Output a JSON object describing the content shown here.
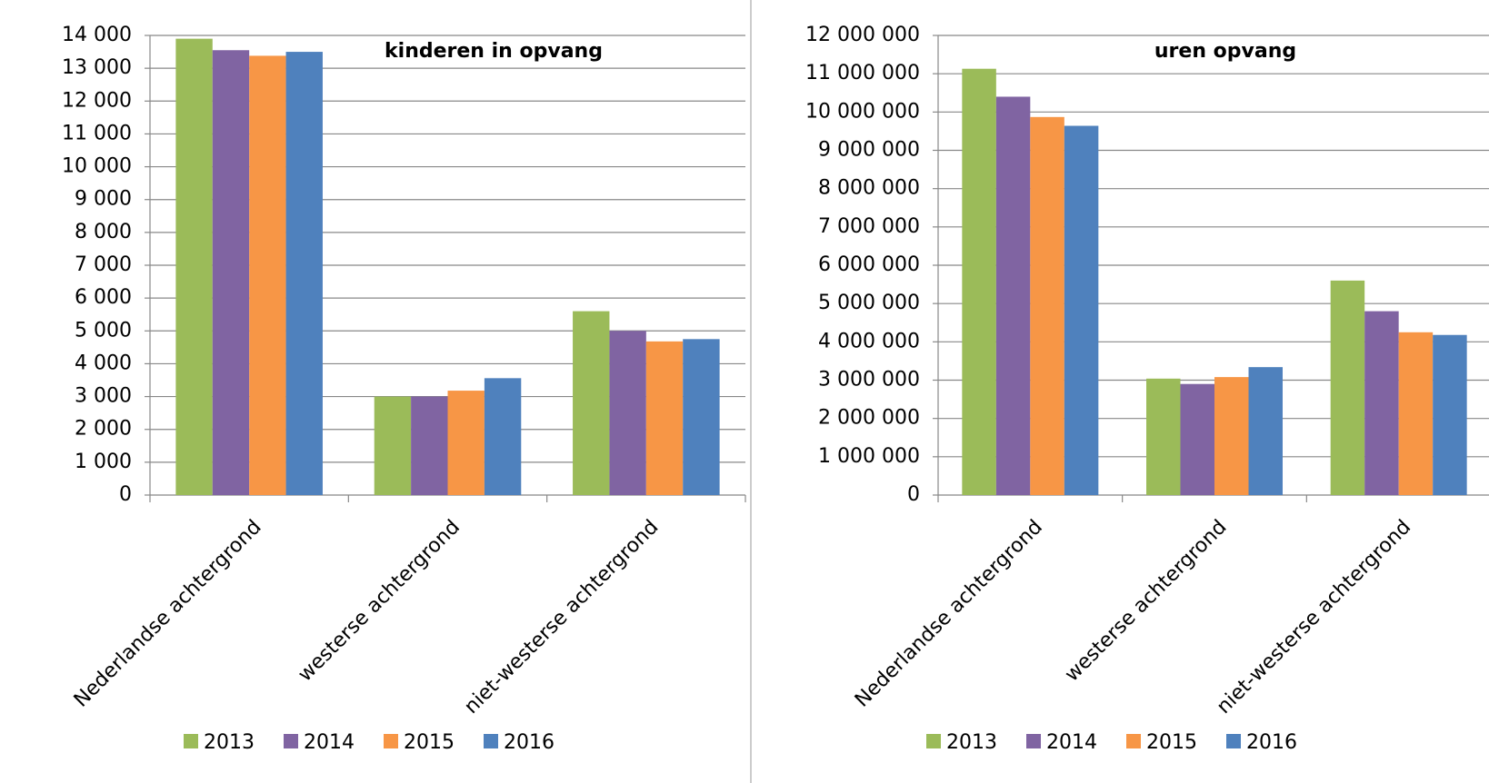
{
  "chart_data": [
    {
      "type": "bar",
      "title": "kinderen in opvang",
      "categories": [
        "Nederlandse achtergrond",
        "westerse achtergrond",
        "niet-westerse achtergrond"
      ],
      "series": [
        {
          "name": "2013",
          "color": "#9bbb59",
          "values": [
            13900,
            3000,
            5600
          ]
        },
        {
          "name": "2014",
          "color": "#8064a2",
          "values": [
            13550,
            3000,
            5000
          ]
        },
        {
          "name": "2015",
          "color": "#f79646",
          "values": [
            13380,
            3180,
            4680
          ]
        },
        {
          "name": "2016",
          "color": "#4f81bd",
          "values": [
            13500,
            3560,
            4750
          ]
        }
      ],
      "ylim": [
        0,
        14000
      ],
      "yticks": [
        0,
        {
          "value": 1000,
          "label": "1 000"
        },
        {
          "value": 2000,
          "label": "2 000"
        },
        {
          "value": 3000,
          "label": "3 000"
        },
        {
          "value": 4000,
          "label": "4 000"
        },
        {
          "value": 5000,
          "label": "5 000"
        },
        {
          "value": 6000,
          "label": "6 000"
        },
        {
          "value": 7000,
          "label": "7 000"
        },
        {
          "value": 8000,
          "label": "8 000"
        },
        {
          "value": 9000,
          "label": "9 000"
        },
        {
          "value": 10000,
          "label": "10 000"
        },
        {
          "value": 11000,
          "label": "11 000"
        },
        {
          "value": 12000,
          "label": "12 000"
        },
        {
          "value": 13000,
          "label": "13 000"
        },
        {
          "value": 14000,
          "label": "14 000"
        }
      ],
      "grid": true,
      "legend": "bottom"
    },
    {
      "type": "bar",
      "title": "uren opvang",
      "categories": [
        "Nederlandse achtergrond",
        "westerse achtergrond",
        "niet-westerse achtergrond"
      ],
      "series": [
        {
          "name": "2013",
          "color": "#9bbb59",
          "values": [
            11130000,
            3040000,
            5600000
          ]
        },
        {
          "name": "2014",
          "color": "#8064a2",
          "values": [
            10400000,
            2900000,
            4800000
          ]
        },
        {
          "name": "2015",
          "color": "#f79646",
          "values": [
            9870000,
            3080000,
            4250000
          ]
        },
        {
          "name": "2016",
          "color": "#4f81bd",
          "values": [
            9640000,
            3340000,
            4180000
          ]
        }
      ],
      "ylim": [
        0,
        12000000
      ],
      "yticks": [
        0,
        {
          "value": 1000000,
          "label": "1 000 000"
        },
        {
          "value": 2000000,
          "label": "2 000 000"
        },
        {
          "value": 3000000,
          "label": "3 000 000"
        },
        {
          "value": 4000000,
          "label": "4 000 000"
        },
        {
          "value": 5000000,
          "label": "5 000 000"
        },
        {
          "value": 6000000,
          "label": "6 000 000"
        },
        {
          "value": 7000000,
          "label": "7 000 000"
        },
        {
          "value": 8000000,
          "label": "8 000 000"
        },
        {
          "value": 9000000,
          "label": "9 000 000"
        },
        {
          "value": 10000000,
          "label": "10 000 000"
        },
        {
          "value": 11000000,
          "label": "11 000 000"
        },
        {
          "value": 12000000,
          "label": "12 000 000"
        }
      ],
      "grid": true,
      "legend": "bottom"
    }
  ]
}
